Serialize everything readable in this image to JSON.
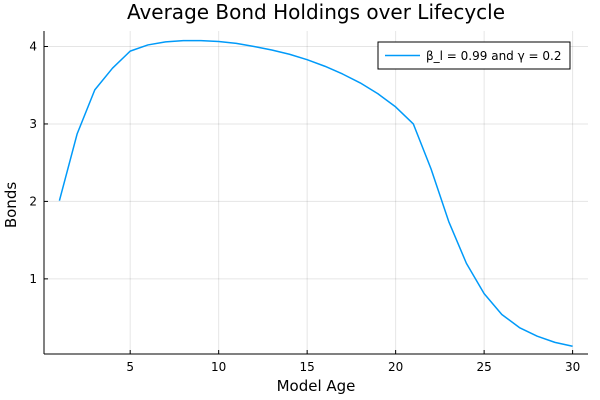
{
  "chart_data": {
    "type": "line",
    "title": "Average Bond Holdings over Lifecycle",
    "xlabel": "Model Age",
    "ylabel": "Bonds",
    "xlim": [
      0.13,
      30.87
    ],
    "ylim": [
      0.03,
      4.2
    ],
    "xticks": [
      5,
      10,
      15,
      20,
      25,
      30
    ],
    "yticks": [
      1,
      2,
      3,
      4
    ],
    "grid": true,
    "legend_position": "top-right",
    "series": [
      {
        "name": "β_l = 0.99 and γ = 0.2",
        "color": "#009af9",
        "x": [
          1,
          2,
          3,
          4,
          5,
          6,
          7,
          8,
          9,
          10,
          11,
          12,
          13,
          14,
          15,
          16,
          17,
          18,
          19,
          20,
          21,
          22,
          23,
          24,
          25,
          26,
          27,
          28,
          29,
          30
        ],
        "y": [
          2.01,
          2.87,
          3.44,
          3.72,
          3.94,
          4.02,
          4.06,
          4.075,
          4.075,
          4.065,
          4.04,
          4.0,
          3.955,
          3.9,
          3.83,
          3.745,
          3.645,
          3.53,
          3.39,
          3.22,
          3.0,
          2.42,
          1.74,
          1.2,
          0.81,
          0.54,
          0.37,
          0.26,
          0.18,
          0.13
        ]
      }
    ]
  }
}
